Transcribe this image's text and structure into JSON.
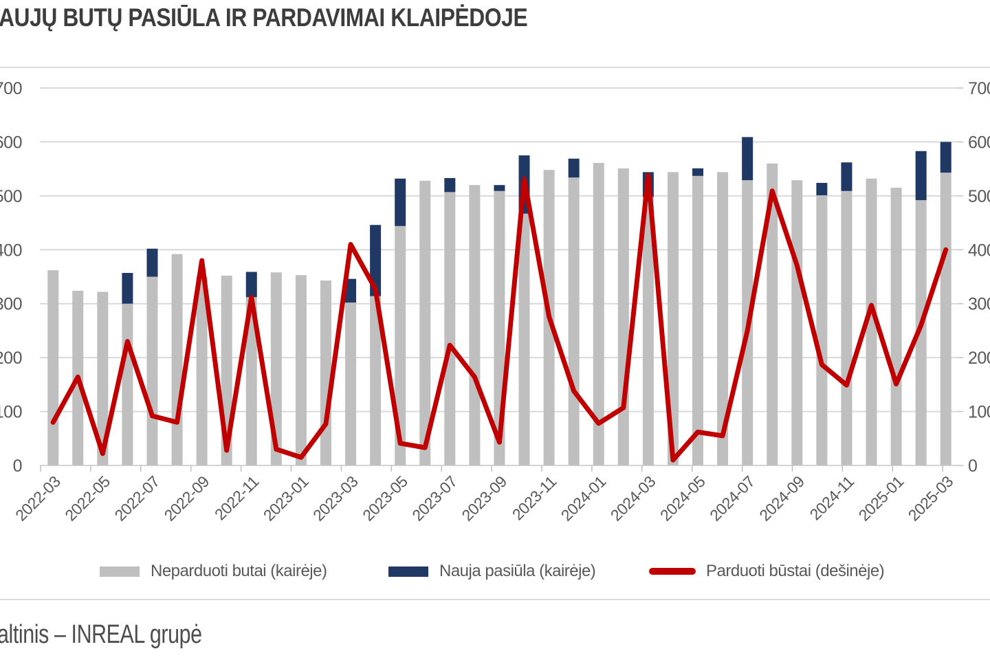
{
  "title": "AUJŲ BUTŲ PASIŪLA IR PARDAVIMAI KLAIPĖDOJE",
  "source": "altinis – INREAL grupė",
  "colors": {
    "unsold_bar": "#bfbfbf",
    "new_supply_bar": "#1f3864",
    "sold_line": "#c00000",
    "gridline": "#d9d9d9",
    "axis_line": "#c6c6c6",
    "tick": "#bfbfbf",
    "axis_label": "#595959",
    "title_text": "#3d3d3d",
    "separator": "#dcdcdc",
    "source_text": "#4d4d4d"
  },
  "legend": {
    "items": [
      {
        "label": "Neparduoti butai (kairėje)",
        "swatch": "bar",
        "color": "#bfbfbf"
      },
      {
        "label": "Nauja pasiūla (kairėje)",
        "swatch": "bar",
        "color": "#1f3864"
      },
      {
        "label": "Parduoti būstai (dešinėje)",
        "swatch": "line",
        "color": "#c00000"
      }
    ]
  },
  "chart_data": {
    "type": "combo",
    "title": "AUJŲ BUTŲ PASIŪLA IR PARDAVIMAI KLAIPĖDOJE",
    "categories": [
      "2022-03",
      "2022-04",
      "2022-05",
      "2022-06",
      "2022-07",
      "2022-08",
      "2022-09",
      "2022-10",
      "2022-11",
      "2022-12",
      "2023-01",
      "2023-02",
      "2023-03",
      "2023-04",
      "2023-05",
      "2023-06",
      "2023-07",
      "2023-08",
      "2023-09",
      "2023-10",
      "2023-11",
      "2023-12",
      "2024-01",
      "2024-02",
      "2024-03",
      "2024-04",
      "2024-05",
      "2024-06",
      "2024-07",
      "2024-08",
      "2024-09",
      "2024-10",
      "2024-11",
      "2024-12",
      "2025-01",
      "2025-02",
      "2025-03"
    ],
    "x_tick_labels": [
      "2022-03",
      "2022-05",
      "2022-07",
      "2022-09",
      "2022-11",
      "2023-01",
      "2023-03",
      "2023-05",
      "2023-07",
      "2023-09",
      "2023-11",
      "2024-01",
      "2024-03",
      "2024-05",
      "2024-07",
      "2024-09",
      "2024-11",
      "2025-01",
      "2025-03"
    ],
    "series": [
      {
        "name": "Neparduoti butai (kairėje)",
        "type": "bar",
        "axis": "left",
        "color": "#bfbfbf",
        "values": [
          362,
          324,
          322,
          300,
          350,
          392,
          350,
          352,
          312,
          358,
          353,
          343,
          302,
          314,
          444,
          528,
          507,
          520,
          509,
          467,
          548,
          534,
          561,
          551,
          498,
          544,
          537,
          544,
          529,
          560,
          529,
          501,
          509,
          532,
          515,
          492,
          543
        ]
      },
      {
        "name": "Nauja pasiūla (kairėje)",
        "type": "bar-stacked-top",
        "axis": "left",
        "color": "#1f3864",
        "values": [
          0,
          0,
          0,
          57,
          52,
          0,
          0,
          0,
          47,
          0,
          0,
          0,
          44,
          132,
          88,
          0,
          26,
          0,
          11,
          108,
          0,
          35,
          0,
          0,
          46,
          0,
          14,
          0,
          80,
          0,
          0,
          23,
          53,
          0,
          0,
          91,
          57
        ]
      },
      {
        "name": "Parduoti būstai (dešinėje)",
        "type": "line",
        "axis": "right",
        "color": "#c00000",
        "values": [
          80,
          164,
          22,
          230,
          92,
          80,
          380,
          28,
          312,
          30,
          15,
          77,
          410,
          327,
          41,
          33,
          223,
          164,
          43,
          531,
          276,
          138,
          78,
          107,
          538,
          10,
          62,
          55,
          250,
          509,
          371,
          187,
          149,
          297,
          151,
          260,
          400
        ]
      }
    ],
    "ylim_left": [
      0,
      700
    ],
    "ylim_right": [
      0,
      700
    ],
    "y_ticks": [
      0,
      100,
      200,
      300,
      400,
      500,
      600,
      700
    ],
    "grid": "horizontal",
    "legend_position": "bottom"
  }
}
